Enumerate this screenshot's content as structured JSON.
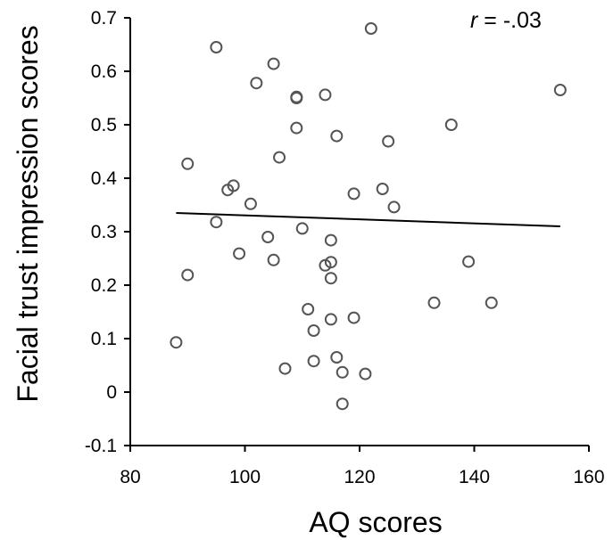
{
  "chart_data": {
    "type": "scatter",
    "title": "",
    "xlabel": "AQ scores",
    "ylabel": "Facial trust impression scores",
    "xlim": [
      80,
      160
    ],
    "ylim": [
      -0.1,
      0.7
    ],
    "xticks": [
      "80",
      "100",
      "120",
      "140",
      "160"
    ],
    "yticks": [
      "-0.1",
      "0",
      "0.1",
      "0.2",
      "0.3",
      "0.4",
      "0.5",
      "0.6",
      "0.7"
    ],
    "xtick_values": [
      80,
      100,
      120,
      140,
      160
    ],
    "ytick_values": [
      -0.1,
      0,
      0.1,
      0.2,
      0.3,
      0.4,
      0.5,
      0.6,
      0.7
    ],
    "grid": false,
    "annotation": {
      "italic": "r",
      "rest": " = -.03"
    },
    "regression_line": {
      "x": [
        88,
        155
      ],
      "y": [
        0.335,
        0.31
      ]
    },
    "points": [
      {
        "x": 88,
        "y": 0.093
      },
      {
        "x": 90,
        "y": 0.427
      },
      {
        "x": 90,
        "y": 0.219
      },
      {
        "x": 95,
        "y": 0.645
      },
      {
        "x": 95,
        "y": 0.318
      },
      {
        "x": 97,
        "y": 0.378
      },
      {
        "x": 98,
        "y": 0.386
      },
      {
        "x": 99,
        "y": 0.259
      },
      {
        "x": 101,
        "y": 0.352
      },
      {
        "x": 102,
        "y": 0.578
      },
      {
        "x": 104,
        "y": 0.29
      },
      {
        "x": 105,
        "y": 0.614
      },
      {
        "x": 105,
        "y": 0.247
      },
      {
        "x": 106,
        "y": 0.439
      },
      {
        "x": 107,
        "y": 0.044
      },
      {
        "x": 109,
        "y": 0.552
      },
      {
        "x": 109,
        "y": 0.55
      },
      {
        "x": 109,
        "y": 0.494
      },
      {
        "x": 110,
        "y": 0.306
      },
      {
        "x": 111,
        "y": 0.155
      },
      {
        "x": 112,
        "y": 0.115
      },
      {
        "x": 112,
        "y": 0.058
      },
      {
        "x": 114,
        "y": 0.556
      },
      {
        "x": 114,
        "y": 0.237
      },
      {
        "x": 115,
        "y": 0.284
      },
      {
        "x": 115,
        "y": 0.243
      },
      {
        "x": 115,
        "y": 0.213
      },
      {
        "x": 115,
        "y": 0.136
      },
      {
        "x": 116,
        "y": 0.479
      },
      {
        "x": 116,
        "y": 0.065
      },
      {
        "x": 117,
        "y": 0.037
      },
      {
        "x": 117,
        "y": -0.022
      },
      {
        "x": 119,
        "y": 0.371
      },
      {
        "x": 119,
        "y": 0.139
      },
      {
        "x": 121,
        "y": 0.034
      },
      {
        "x": 122,
        "y": 0.68
      },
      {
        "x": 124,
        "y": 0.38
      },
      {
        "x": 125,
        "y": 0.469
      },
      {
        "x": 126,
        "y": 0.346
      },
      {
        "x": 133,
        "y": 0.167
      },
      {
        "x": 136,
        "y": 0.5
      },
      {
        "x": 139,
        "y": 0.244
      },
      {
        "x": 143,
        "y": 0.167
      },
      {
        "x": 155,
        "y": 0.565
      }
    ]
  }
}
